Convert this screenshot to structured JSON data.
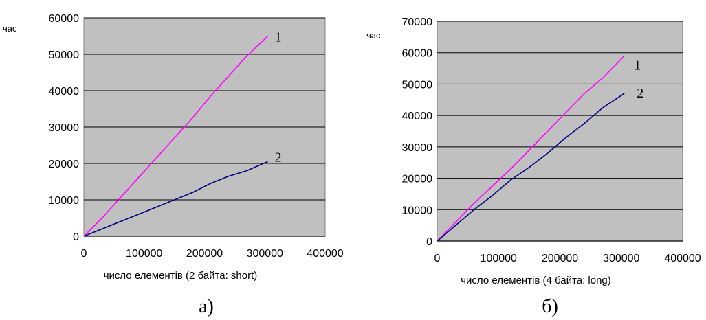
{
  "chart_data": [
    {
      "type": "line",
      "caption": "а)",
      "ylabel": "час",
      "xlabel": "число елементів (2 байта: short)",
      "xlim": [
        0,
        400000
      ],
      "ylim": [
        0,
        60000
      ],
      "x_ticks": [
        0,
        100000,
        200000,
        300000,
        400000
      ],
      "x_tick_labels": [
        "0",
        "100000",
        "200000",
        "300000",
        "400000"
      ],
      "y_ticks": [
        0,
        10000,
        20000,
        30000,
        40000,
        50000,
        60000
      ],
      "y_tick_labels": [
        "0",
        "10000",
        "20000",
        "30000",
        "40000",
        "50000",
        "60000"
      ],
      "grid": "horizontal",
      "plot_background": "#c0c0c0",
      "series": [
        {
          "name": "1",
          "color": "#ff00ff",
          "x": [
            0,
            30000,
            60000,
            90000,
            120000,
            150000,
            180000,
            210000,
            240000,
            270000,
            305000
          ],
          "y": [
            0,
            5000,
            10500,
            16000,
            21500,
            27000,
            32500,
            38500,
            44000,
            49500,
            55000
          ]
        },
        {
          "name": "2",
          "color": "#000080",
          "x": [
            0,
            30000,
            60000,
            90000,
            120000,
            150000,
            180000,
            210000,
            240000,
            270000,
            305000
          ],
          "y": [
            0,
            2000,
            4000,
            6000,
            8000,
            10000,
            12000,
            14500,
            16500,
            18000,
            20500
          ]
        }
      ]
    },
    {
      "type": "line",
      "caption": "б)",
      "ylabel": "час",
      "xlabel": "число елементів (4 байта: long)",
      "xlim": [
        0,
        400000
      ],
      "ylim": [
        0,
        70000
      ],
      "x_ticks": [
        0,
        100000,
        200000,
        300000,
        400000
      ],
      "x_tick_labels": [
        "0",
        "100000",
        "200000",
        "300000",
        "400000"
      ],
      "y_ticks": [
        0,
        10000,
        20000,
        30000,
        40000,
        50000,
        60000,
        70000
      ],
      "y_tick_labels": [
        "0",
        "10000",
        "20000",
        "30000",
        "40000",
        "50000",
        "60000",
        "70000"
      ],
      "grid": "horizontal",
      "plot_background": "#c0c0c0",
      "series": [
        {
          "name": "1",
          "color": "#ff00ff",
          "x": [
            0,
            30000,
            60000,
            90000,
            120000,
            150000,
            180000,
            210000,
            240000,
            270000,
            305000
          ],
          "y": [
            0,
            6000,
            12000,
            17500,
            23000,
            29000,
            35000,
            41000,
            47000,
            52000,
            59000
          ]
        },
        {
          "name": "2",
          "color": "#000080",
          "x": [
            0,
            30000,
            60000,
            90000,
            120000,
            150000,
            180000,
            210000,
            240000,
            270000,
            305000
          ],
          "y": [
            0,
            5000,
            10000,
            14500,
            19500,
            23500,
            28000,
            33000,
            37500,
            42500,
            47000
          ]
        }
      ]
    }
  ]
}
